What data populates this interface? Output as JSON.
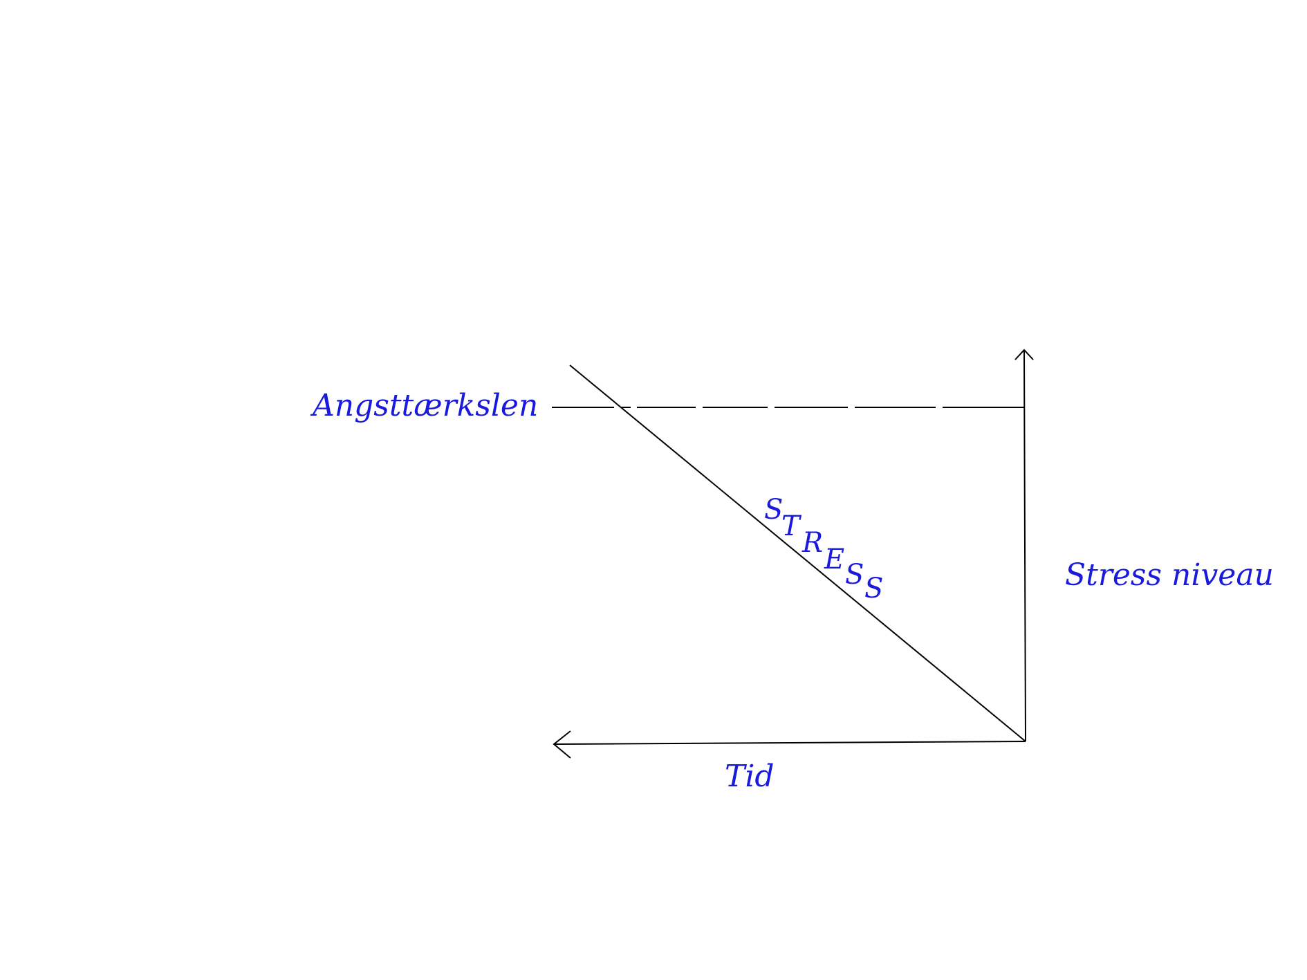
{
  "diagram": {
    "label_color": "#1a1adc",
    "line_color": "#000000",
    "threshold_label": "Angsttærkslen",
    "y_axis_label": "Stress niveau",
    "x_axis_label": "Tid",
    "stress_word": [
      "S",
      "T",
      "R",
      "E",
      "S",
      "S"
    ]
  }
}
